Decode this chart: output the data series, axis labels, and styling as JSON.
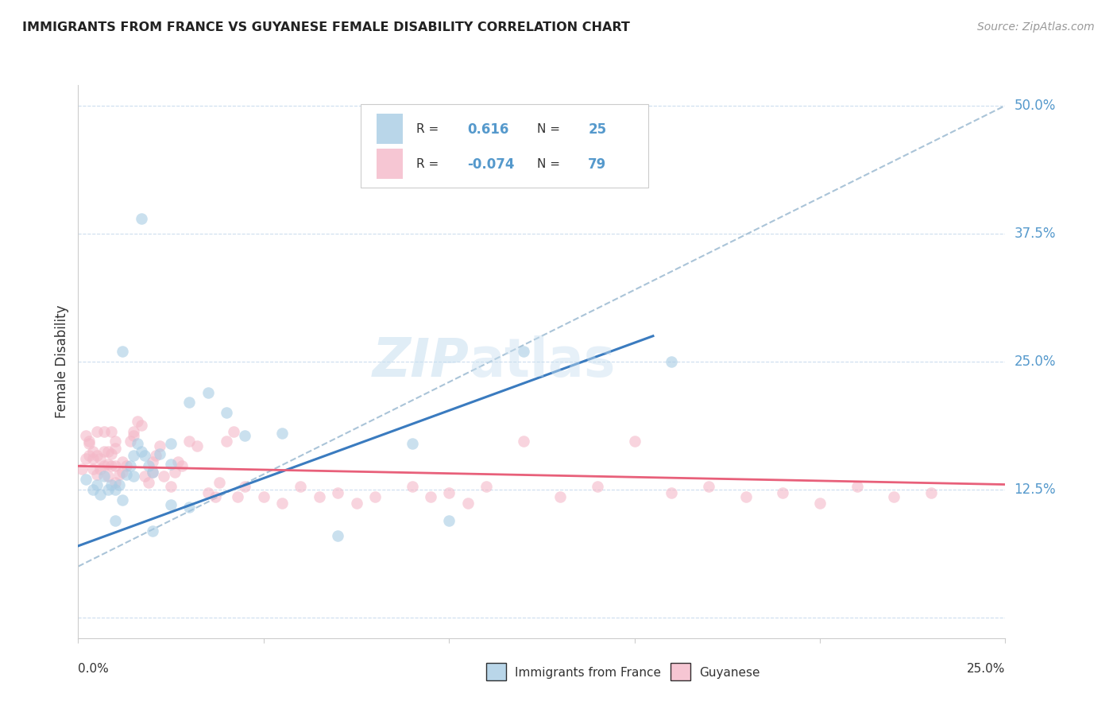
{
  "title": "IMMIGRANTS FROM FRANCE VS GUYANESE FEMALE DISABILITY CORRELATION CHART",
  "source": "Source: ZipAtlas.com",
  "ylabel": "Female Disability",
  "yticks": [
    0.0,
    0.125,
    0.25,
    0.375,
    0.5
  ],
  "ytick_labels": [
    "",
    "12.5%",
    "25.0%",
    "37.5%",
    "50.0%"
  ],
  "xlim": [
    0.0,
    0.25
  ],
  "ylim": [
    -0.02,
    0.52
  ],
  "watermark": "ZIPatlas",
  "color_blue": "#a8cce4",
  "color_pink": "#f4b8c8",
  "color_blue_line": "#3a7bbf",
  "color_pink_line": "#e8607a",
  "color_dashed": "#aac4d8",
  "color_ytick": "#5599cc",
  "bottom_legend": [
    "Immigrants from France",
    "Guyanese"
  ],
  "blue_scatter_x": [
    0.002,
    0.004,
    0.005,
    0.006,
    0.007,
    0.008,
    0.009,
    0.01,
    0.011,
    0.012,
    0.013,
    0.014,
    0.015,
    0.016,
    0.017,
    0.018,
    0.019,
    0.02,
    0.022,
    0.025,
    0.03,
    0.035,
    0.04,
    0.055,
    0.09,
    0.1,
    0.12,
    0.16,
    0.03,
    0.045,
    0.01,
    0.02,
    0.07,
    0.015,
    0.025,
    0.025,
    0.017,
    0.012
  ],
  "blue_scatter_y": [
    0.135,
    0.125,
    0.13,
    0.12,
    0.138,
    0.125,
    0.13,
    0.125,
    0.13,
    0.115,
    0.14,
    0.148,
    0.138,
    0.17,
    0.162,
    0.158,
    0.148,
    0.142,
    0.16,
    0.17,
    0.21,
    0.22,
    0.2,
    0.18,
    0.17,
    0.095,
    0.26,
    0.25,
    0.108,
    0.178,
    0.095,
    0.085,
    0.08,
    0.158,
    0.15,
    0.11,
    0.39,
    0.26
  ],
  "pink_scatter_x": [
    0.001,
    0.002,
    0.002,
    0.003,
    0.003,
    0.004,
    0.004,
    0.005,
    0.005,
    0.006,
    0.006,
    0.007,
    0.007,
    0.008,
    0.008,
    0.009,
    0.009,
    0.01,
    0.01,
    0.01,
    0.011,
    0.012,
    0.013,
    0.014,
    0.015,
    0.016,
    0.017,
    0.018,
    0.019,
    0.02,
    0.021,
    0.022,
    0.023,
    0.025,
    0.026,
    0.027,
    0.028,
    0.03,
    0.032,
    0.035,
    0.037,
    0.038,
    0.04,
    0.042,
    0.043,
    0.045,
    0.05,
    0.055,
    0.06,
    0.065,
    0.07,
    0.075,
    0.08,
    0.09,
    0.095,
    0.1,
    0.105,
    0.11,
    0.12,
    0.13,
    0.14,
    0.15,
    0.16,
    0.17,
    0.18,
    0.19,
    0.2,
    0.21,
    0.22,
    0.23,
    0.003,
    0.004,
    0.005,
    0.007,
    0.008,
    0.009,
    0.01,
    0.012,
    0.015,
    0.02
  ],
  "pink_scatter_y": [
    0.145,
    0.178,
    0.155,
    0.17,
    0.158,
    0.155,
    0.145,
    0.14,
    0.158,
    0.145,
    0.155,
    0.148,
    0.162,
    0.138,
    0.15,
    0.148,
    0.16,
    0.132,
    0.148,
    0.165,
    0.14,
    0.152,
    0.148,
    0.172,
    0.178,
    0.192,
    0.188,
    0.138,
    0.132,
    0.152,
    0.158,
    0.168,
    0.138,
    0.128,
    0.142,
    0.152,
    0.148,
    0.172,
    0.168,
    0.122,
    0.118,
    0.132,
    0.172,
    0.182,
    0.118,
    0.128,
    0.118,
    0.112,
    0.128,
    0.118,
    0.122,
    0.112,
    0.118,
    0.128,
    0.118,
    0.122,
    0.112,
    0.128,
    0.172,
    0.118,
    0.128,
    0.172,
    0.122,
    0.128,
    0.118,
    0.122,
    0.112,
    0.128,
    0.118,
    0.122,
    0.172,
    0.162,
    0.182,
    0.182,
    0.162,
    0.182,
    0.172,
    0.142,
    0.182,
    0.142
  ],
  "blue_line_x": [
    0.0,
    0.155
  ],
  "blue_line_y": [
    0.07,
    0.275
  ],
  "pink_line_x": [
    0.0,
    0.25
  ],
  "pink_line_y": [
    0.148,
    0.13
  ],
  "dashed_line_x": [
    0.0,
    0.25
  ],
  "dashed_line_y": [
    0.05,
    0.5
  ]
}
